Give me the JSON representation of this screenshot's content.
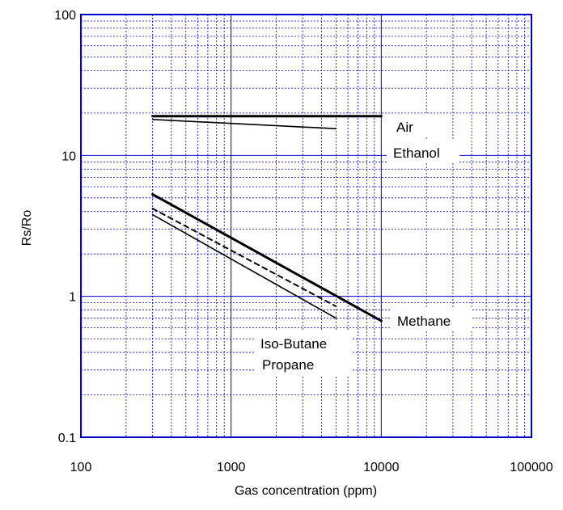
{
  "chart_data": {
    "type": "line",
    "xscale": "log",
    "yscale": "log",
    "xlim": [
      100,
      100000
    ],
    "ylim": [
      0.1,
      100
    ],
    "xlabel": "Gas concentration (ppm)",
    "ylabel": "Rs/Ro",
    "grid": true,
    "legend": "inline labels",
    "x_ticks": [
      "100",
      "1000",
      "10000",
      "100000"
    ],
    "y_ticks": [
      "0.1",
      "1",
      "10",
      "100"
    ],
    "colors": {
      "frame": "#0000cc",
      "grid": "#0000cc",
      "lines": "#000000"
    },
    "series": [
      {
        "name": "Air",
        "x": [
          300,
          10000
        ],
        "y": [
          19,
          19
        ],
        "style": "solid-thick"
      },
      {
        "name": "Ethanol",
        "x": [
          300,
          5000
        ],
        "y": [
          18,
          15.5
        ],
        "style": "solid"
      },
      {
        "name": "Methane",
        "x": [
          300,
          10000
        ],
        "y": [
          5.3,
          0.67
        ],
        "style": "solid-thick"
      },
      {
        "name": "Iso-Butane",
        "x": [
          300,
          5000
        ],
        "y": [
          4.2,
          0.85
        ],
        "style": "dashed"
      },
      {
        "name": "Propane",
        "x": [
          300,
          5000
        ],
        "y": [
          3.8,
          0.7
        ],
        "style": "solid"
      }
    ]
  }
}
